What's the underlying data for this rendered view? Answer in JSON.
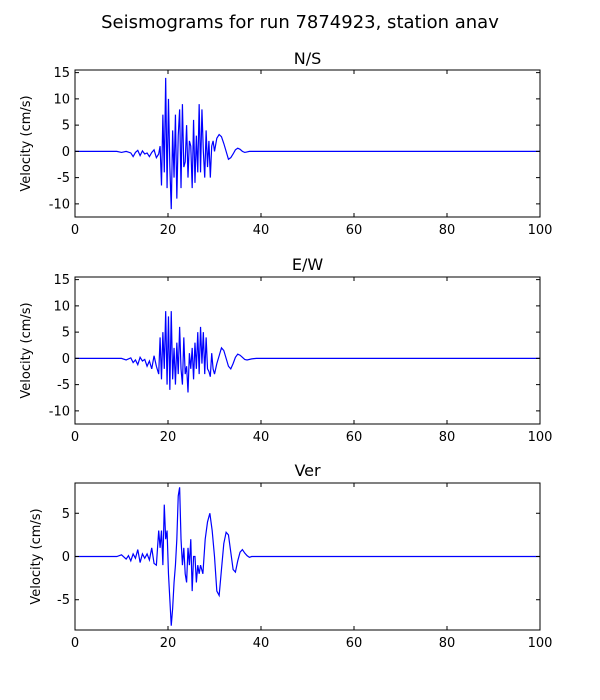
{
  "figure": {
    "title": "Seismograms for run 7874923, station anav",
    "line_color": "#0000ff"
  },
  "chart_data": [
    {
      "type": "line",
      "title": "N/S",
      "xlabel": "",
      "ylabel": "Velocity (cm/s)",
      "xlim": [
        0,
        100
      ],
      "ylim": [
        -12.5,
        15.5
      ],
      "xticks": [
        0,
        20,
        40,
        60,
        80,
        100
      ],
      "yticks": [
        -10,
        -5,
        0,
        5,
        10,
        15
      ],
      "grid": false,
      "series": [
        {
          "x": [
            0,
            9,
            10,
            11,
            12,
            12.5,
            13,
            13.5,
            14,
            14.5,
            15,
            15.5,
            16,
            16.5,
            17,
            17.5,
            18,
            18.3,
            18.6,
            18.9,
            19.2,
            19.5,
            19.8,
            20.1,
            20.4,
            20.7,
            21,
            21.3,
            21.6,
            21.9,
            22.2,
            22.5,
            22.8,
            23.1,
            23.4,
            23.7,
            24,
            24.3,
            24.6,
            24.9,
            25.2,
            25.5,
            25.8,
            26.1,
            26.4,
            26.7,
            27,
            27.3,
            27.6,
            27.9,
            28.2,
            28.5,
            28.8,
            29.1,
            29.4,
            29.7,
            30,
            30.5,
            31,
            31.5,
            32,
            32.5,
            33,
            33.5,
            34,
            34.5,
            35,
            35.5,
            36,
            36.5,
            37,
            37.5,
            38,
            39,
            40,
            42,
            45,
            50,
            100
          ],
          "y": [
            0,
            0,
            -0.2,
            0,
            -0.3,
            -1,
            -0.2,
            0.2,
            -0.8,
            0.1,
            -0.5,
            -0.3,
            -1,
            -0.2,
            0.3,
            -1.2,
            -0.5,
            1,
            -6.5,
            7,
            -4,
            14,
            -7,
            10,
            -3,
            -11,
            4,
            -5,
            7,
            -9,
            3,
            8,
            -7,
            9,
            -3,
            -2,
            5,
            -5,
            2,
            1,
            -7,
            6,
            -6,
            3,
            -4,
            9,
            -4,
            8,
            0,
            -5,
            4,
            -3,
            2,
            -5,
            1,
            2,
            0,
            2.5,
            3.2,
            2.8,
            1.5,
            0,
            -1.5,
            -1.2,
            -0.5,
            0.3,
            0.6,
            0.4,
            0,
            -0.2,
            -0.1,
            0,
            0,
            0,
            0,
            0,
            0,
            0,
            0
          ]
        }
      ]
    },
    {
      "type": "line",
      "title": "E/W",
      "xlabel": "",
      "ylabel": "Velocity (cm/s)",
      "xlim": [
        0,
        100
      ],
      "ylim": [
        -12.5,
        15.5
      ],
      "xticks": [
        0,
        20,
        40,
        60,
        80,
        100
      ],
      "yticks": [
        -10,
        -5,
        0,
        5,
        10,
        15
      ],
      "grid": false,
      "series": [
        {
          "x": [
            0,
            10,
            11,
            12,
            12.5,
            13,
            13.5,
            14,
            14.5,
            15,
            15.5,
            16,
            16.5,
            17,
            17.5,
            18,
            18.3,
            18.6,
            18.9,
            19.2,
            19.5,
            19.8,
            20.1,
            20.4,
            20.7,
            21,
            21.3,
            21.6,
            21.9,
            22.2,
            22.5,
            22.8,
            23.1,
            23.4,
            23.7,
            24,
            24.3,
            24.6,
            24.9,
            25.2,
            25.5,
            25.8,
            26.1,
            26.4,
            26.7,
            27,
            27.3,
            27.6,
            27.9,
            28.2,
            28.5,
            28.8,
            29.1,
            29.4,
            29.7,
            30,
            30.5,
            31,
            31.5,
            32,
            32.5,
            33,
            33.5,
            34,
            34.5,
            35,
            35.5,
            36,
            36.5,
            37,
            38,
            39,
            40,
            42,
            45,
            50,
            100
          ],
          "y": [
            0,
            0,
            -0.3,
            0.1,
            -0.8,
            -0.3,
            -1.2,
            0.2,
            -0.5,
            -0.2,
            -1.5,
            -0.5,
            -2,
            0.5,
            -1.5,
            -3,
            4,
            -4,
            5,
            -2,
            9,
            -5,
            8,
            -6,
            9,
            -4,
            2,
            -5,
            3,
            -3,
            6,
            -2,
            -5,
            4,
            -3,
            -1.5,
            -6.5,
            1,
            -2,
            2,
            -4,
            3,
            -2,
            5,
            -3,
            6,
            -1,
            5,
            -3,
            4,
            -2,
            -2.5,
            -3.5,
            1,
            -2,
            -3,
            -1,
            0.5,
            2,
            1.5,
            0,
            -1.5,
            -2,
            -1,
            0.2,
            0.8,
            0.6,
            0.2,
            -0.2,
            -0.3,
            -0.1,
            0,
            0,
            0,
            0,
            0,
            0
          ]
        }
      ]
    },
    {
      "type": "line",
      "title": "Ver",
      "xlabel": "",
      "ylabel": "Velocity (cm/s)",
      "xlim": [
        0,
        100
      ],
      "ylim": [
        -8.5,
        8.5
      ],
      "xticks": [
        0,
        20,
        40,
        60,
        80,
        100
      ],
      "yticks": [
        -5,
        0,
        5
      ],
      "grid": false,
      "series": [
        {
          "x": [
            0,
            9,
            10,
            11,
            11.5,
            12,
            12.5,
            13,
            13.5,
            14,
            14.5,
            15,
            15.5,
            16,
            16.5,
            17,
            17.5,
            18,
            18.3,
            18.6,
            18.9,
            19.2,
            19.5,
            19.8,
            20.1,
            20.4,
            20.7,
            21,
            21.3,
            21.6,
            21.9,
            22.2,
            22.5,
            22.8,
            23.1,
            23.4,
            23.7,
            24,
            24.3,
            24.6,
            24.9,
            25.2,
            25.5,
            25.8,
            26.1,
            26.4,
            26.7,
            27,
            27.5,
            28,
            28.5,
            29,
            29.5,
            30,
            30.5,
            31,
            31.5,
            32,
            32.5,
            33,
            33.5,
            34,
            34.5,
            35,
            35.5,
            36,
            36.5,
            37,
            37.5,
            38,
            39,
            40,
            42,
            45,
            50,
            100
          ],
          "y": [
            0,
            0,
            0.2,
            -0.3,
            0.1,
            -0.5,
            0.3,
            -0.2,
            0.8,
            -0.7,
            0.3,
            -0.2,
            0.3,
            -0.4,
            1,
            -0.8,
            -1,
            3,
            1,
            3,
            -1,
            6,
            2,
            3,
            -2,
            -5,
            -8,
            -6,
            -3,
            -1,
            2,
            7,
            8,
            2,
            -1,
            1,
            -2,
            -3,
            1,
            -1,
            2,
            -4,
            0,
            0,
            -3,
            -1,
            -2,
            -1,
            -2,
            2,
            4,
            5,
            3,
            0,
            -4,
            -4.5,
            -1.5,
            1.5,
            2.8,
            2.5,
            0.5,
            -1.5,
            -1.8,
            -0.5,
            0.5,
            0.8,
            0.4,
            0.1,
            -0.1,
            0,
            0,
            0,
            0,
            0,
            0,
            0
          ]
        }
      ]
    }
  ]
}
